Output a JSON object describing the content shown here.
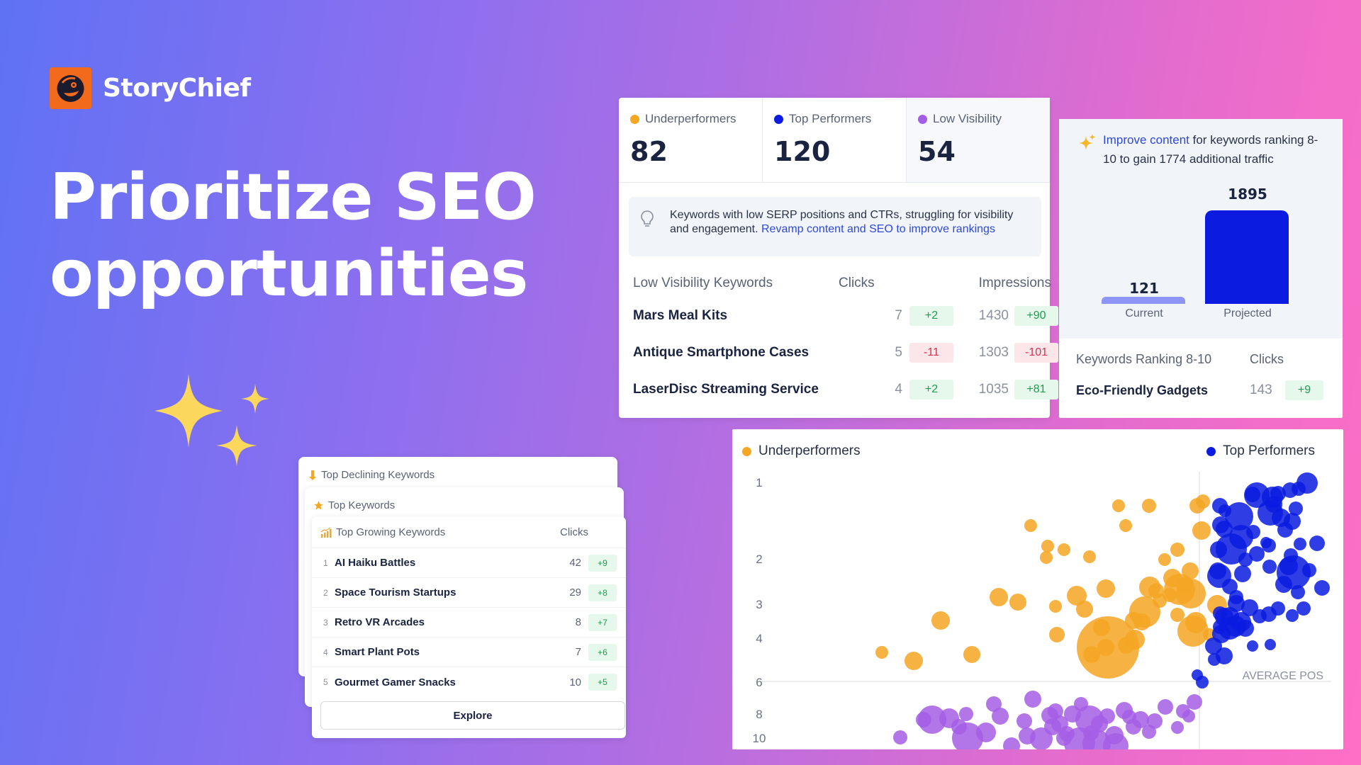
{
  "brand": {
    "name": "StoryChief"
  },
  "headline": {
    "line1": "Prioritize SEO",
    "line2": "opportunities"
  },
  "stats": {
    "items": [
      {
        "label": "Underperformers",
        "value": "82",
        "color": "#f5a623"
      },
      {
        "label": "Top Performers",
        "value": "120",
        "color": "#0b1be0"
      },
      {
        "label": "Low Visibility",
        "value": "54",
        "color": "#a45ee5"
      }
    ],
    "hint": "Keywords with low SERP positions and CTRs, struggling for visibility and engagement.",
    "hint_link": "Revamp content and SEO to improve rankings",
    "table": {
      "headers": [
        "Low Visibility Keywords",
        "Clicks",
        "Impressions"
      ],
      "rows": [
        {
          "name": "Mars Meal Kits",
          "clicks": "7",
          "clicks_delta": "+2",
          "impressions": "1430",
          "impressions_delta": "+90"
        },
        {
          "name": "Antique Smartphone Cases",
          "clicks": "5",
          "clicks_delta": "-11",
          "impressions": "1303",
          "impressions_delta": "-101"
        },
        {
          "name": "LaserDisc Streaming Service",
          "clicks": "4",
          "clicks_delta": "+2",
          "impressions": "1035",
          "impressions_delta": "+81"
        }
      ]
    }
  },
  "improve": {
    "link": "Improve content",
    "text": " for keywords ranking 8-10 to gain 1774 additional traffic",
    "current_value": "121",
    "current_label": "Current",
    "projected_value": "1895",
    "projected_label": "Projected",
    "table": {
      "headers": [
        "Keywords Ranking 8-10",
        "Clicks"
      ],
      "rows": [
        {
          "name": "Eco-Friendly Gadgets",
          "clicks": "143",
          "delta": "+9"
        }
      ]
    }
  },
  "scatter": {
    "legend_left": "Underperformers",
    "legend_right": "Top Performers",
    "axis_label": "AVERAGE POS",
    "y_ticks": [
      "1",
      "2",
      "3",
      "4",
      "6",
      "8",
      "10"
    ],
    "colors": {
      "under": "#f5a623",
      "top": "#0b1be0",
      "low": "#a45ee5"
    }
  },
  "keyword_stack": {
    "back_title": "Top Declining Keywords",
    "mid_title": "Top Keywords",
    "front_title": "Top Growing Keywords",
    "clicks_header": "Clicks",
    "rows": [
      {
        "rank": "1",
        "name": "AI Haiku Battles",
        "clicks": "42",
        "delta": "+9"
      },
      {
        "rank": "2",
        "name": "Space Tourism Startups",
        "clicks": "29",
        "delta": "+8"
      },
      {
        "rank": "3",
        "name": "Retro VR Arcades",
        "clicks": "8",
        "delta": "+7"
      },
      {
        "rank": "4",
        "name": "Smart Plant Pots",
        "clicks": "7",
        "delta": "+6"
      },
      {
        "rank": "5",
        "name": "Gourmet Gamer Snacks",
        "clicks": "10",
        "delta": "+5"
      }
    ],
    "explore_label": "Explore"
  }
}
